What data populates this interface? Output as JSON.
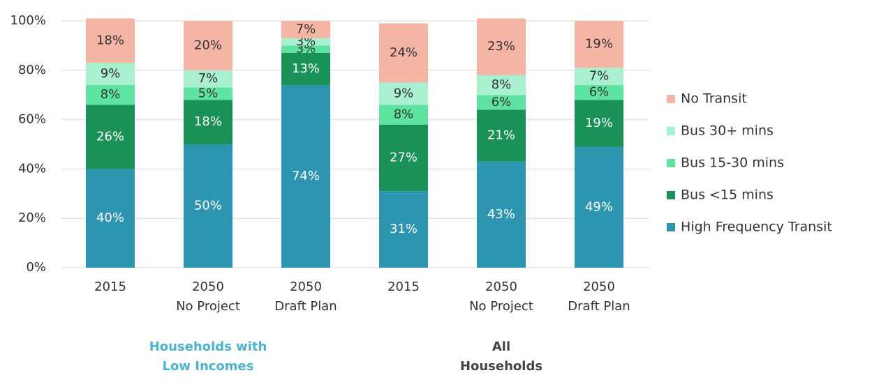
{
  "chart_data": {
    "type": "stacked_bar",
    "categories": [
      [
        "2015"
      ],
      [
        "2050",
        "No Project"
      ],
      [
        "2050",
        "Draft Plan"
      ],
      [
        "2015"
      ],
      [
        "2050",
        "No Project"
      ],
      [
        "2050",
        "Draft Plan"
      ]
    ],
    "series": [
      {
        "name": "High Frequency Transit",
        "color": "#2e95b0",
        "text_color": "#ffffff",
        "values": [
          40,
          50,
          74,
          31,
          43,
          49
        ],
        "value_labels": [
          "40%",
          "50%",
          "74%",
          "31%",
          "43%",
          "49%"
        ]
      },
      {
        "name": "Bus <15 mins",
        "color": "#1a9156",
        "text_color": "#ffffff",
        "values": [
          26,
          18,
          13,
          27,
          21,
          19
        ],
        "value_labels": [
          "26%",
          "18%",
          "13%",
          "27%",
          "21%",
          "19%"
        ]
      },
      {
        "name": "Bus 15-30 mins",
        "color": "#5fe3a1",
        "text_color": "#333333",
        "values": [
          8,
          5,
          3,
          8,
          6,
          6
        ],
        "value_labels": [
          "8%",
          "5%",
          "3%",
          "8%",
          "6%",
          "6%"
        ]
      },
      {
        "name": "Bus 30+ mins",
        "color": "#a8f0d0",
        "text_color": "#333333",
        "values": [
          9,
          7,
          3,
          9,
          8,
          7
        ],
        "value_labels": [
          "9%",
          "7%",
          "3%",
          "9%",
          "8%",
          "7%"
        ]
      },
      {
        "name": "No Transit",
        "color": "#f4b5a5",
        "text_color": "#333333",
        "values": [
          18,
          20,
          7,
          24,
          23,
          19
        ],
        "value_labels": [
          "18%",
          "20%",
          "7%",
          "24%",
          "23%",
          "19%"
        ]
      }
    ],
    "ylim": [
      0,
      100
    ],
    "yticks": [
      {
        "value": 0,
        "label": "0%"
      },
      {
        "value": 20,
        "label": "20%"
      },
      {
        "value": 40,
        "label": "40%"
      },
      {
        "value": 60,
        "label": "60%"
      },
      {
        "value": 80,
        "label": "80%"
      },
      {
        "value": 100,
        "label": "100%"
      }
    ],
    "grid": true,
    "legend": "right",
    "groups": [
      {
        "label": [
          "Households with",
          "Low Incomes"
        ],
        "color": "#4ab3d0"
      },
      {
        "label": [
          "All",
          "Households"
        ],
        "color": "#444444"
      }
    ]
  }
}
